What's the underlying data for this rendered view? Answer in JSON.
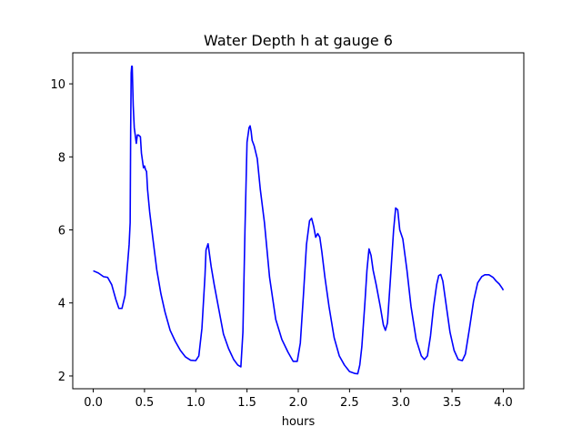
{
  "chart_data": {
    "type": "line",
    "title": "Water Depth h at gauge 6",
    "xlabel": "hours",
    "ylabel": "",
    "xlim": [
      -0.2,
      4.2
    ],
    "ylim": [
      1.65,
      10.85
    ],
    "grid": false,
    "x_ticks": [
      0.0,
      0.5,
      1.0,
      1.5,
      2.0,
      2.5,
      3.0,
      3.5,
      4.0
    ],
    "x_tick_labels": [
      "0.0",
      "0.5",
      "1.0",
      "1.5",
      "2.0",
      "2.5",
      "3.0",
      "3.5",
      "4.0"
    ],
    "y_ticks": [
      2,
      4,
      6,
      8,
      10
    ],
    "y_tick_labels": [
      "2",
      "4",
      "6",
      "8",
      "10"
    ],
    "series": [
      {
        "color": "#0000ff",
        "x": [
          0.0,
          0.05,
          0.1,
          0.14,
          0.18,
          0.22,
          0.25,
          0.28,
          0.31,
          0.33,
          0.35,
          0.36,
          0.365,
          0.37,
          0.375,
          0.38,
          0.39,
          0.4,
          0.42,
          0.43,
          0.44,
          0.46,
          0.47,
          0.49,
          0.5,
          0.51,
          0.52,
          0.53,
          0.55,
          0.58,
          0.62,
          0.66,
          0.7,
          0.75,
          0.8,
          0.85,
          0.9,
          0.95,
          1.0,
          1.03,
          1.06,
          1.09,
          1.1,
          1.12,
          1.15,
          1.18,
          1.22,
          1.27,
          1.32,
          1.37,
          1.41,
          1.44,
          1.46,
          1.48,
          1.5,
          1.52,
          1.53,
          1.54,
          1.55,
          1.57,
          1.6,
          1.63,
          1.67,
          1.72,
          1.78,
          1.84,
          1.9,
          1.95,
          1.99,
          2.02,
          2.05,
          2.08,
          2.11,
          2.13,
          2.15,
          2.17,
          2.19,
          2.21,
          2.23,
          2.26,
          2.3,
          2.35,
          2.4,
          2.45,
          2.5,
          2.55,
          2.58,
          2.6,
          2.62,
          2.65,
          2.67,
          2.69,
          2.71,
          2.73,
          2.76,
          2.8,
          2.83,
          2.85,
          2.87,
          2.9,
          2.93,
          2.95,
          2.97,
          2.99,
          3.02,
          3.06,
          3.1,
          3.15,
          3.2,
          3.23,
          3.26,
          3.29,
          3.32,
          3.35,
          3.37,
          3.39,
          3.41,
          3.44,
          3.48,
          3.52,
          3.56,
          3.6,
          3.63,
          3.67,
          3.71,
          3.75,
          3.79,
          3.82,
          3.86,
          3.9,
          3.93,
          3.96,
          3.99,
          4.0
        ],
        "y": [
          4.88,
          4.82,
          4.72,
          4.7,
          4.5,
          4.1,
          3.85,
          3.85,
          4.2,
          4.9,
          5.6,
          6.2,
          8.7,
          10.3,
          10.48,
          10.48,
          9.4,
          8.8,
          8.37,
          8.6,
          8.6,
          8.55,
          8.1,
          7.7,
          7.75,
          7.65,
          7.6,
          7.1,
          6.5,
          5.8,
          4.9,
          4.25,
          3.75,
          3.25,
          2.95,
          2.7,
          2.52,
          2.43,
          2.42,
          2.55,
          3.3,
          4.75,
          5.45,
          5.62,
          5.0,
          4.5,
          3.9,
          3.15,
          2.75,
          2.45,
          2.3,
          2.25,
          3.2,
          6.0,
          8.4,
          8.8,
          8.85,
          8.7,
          8.45,
          8.3,
          7.95,
          7.1,
          6.2,
          4.7,
          3.55,
          3.0,
          2.65,
          2.4,
          2.4,
          2.9,
          4.2,
          5.6,
          6.25,
          6.32,
          6.1,
          5.8,
          5.9,
          5.8,
          5.4,
          4.7,
          3.9,
          3.05,
          2.55,
          2.3,
          2.12,
          2.07,
          2.06,
          2.3,
          2.8,
          4.0,
          4.9,
          5.48,
          5.3,
          4.9,
          4.5,
          3.9,
          3.4,
          3.25,
          3.45,
          4.7,
          6.0,
          6.6,
          6.55,
          6.0,
          5.75,
          4.9,
          3.9,
          3.0,
          2.55,
          2.45,
          2.55,
          3.1,
          3.9,
          4.5,
          4.75,
          4.78,
          4.6,
          4.0,
          3.2,
          2.7,
          2.45,
          2.42,
          2.6,
          3.3,
          4.05,
          4.55,
          4.72,
          4.77,
          4.77,
          4.7,
          4.6,
          4.52,
          4.4,
          4.35
        ]
      }
    ]
  }
}
